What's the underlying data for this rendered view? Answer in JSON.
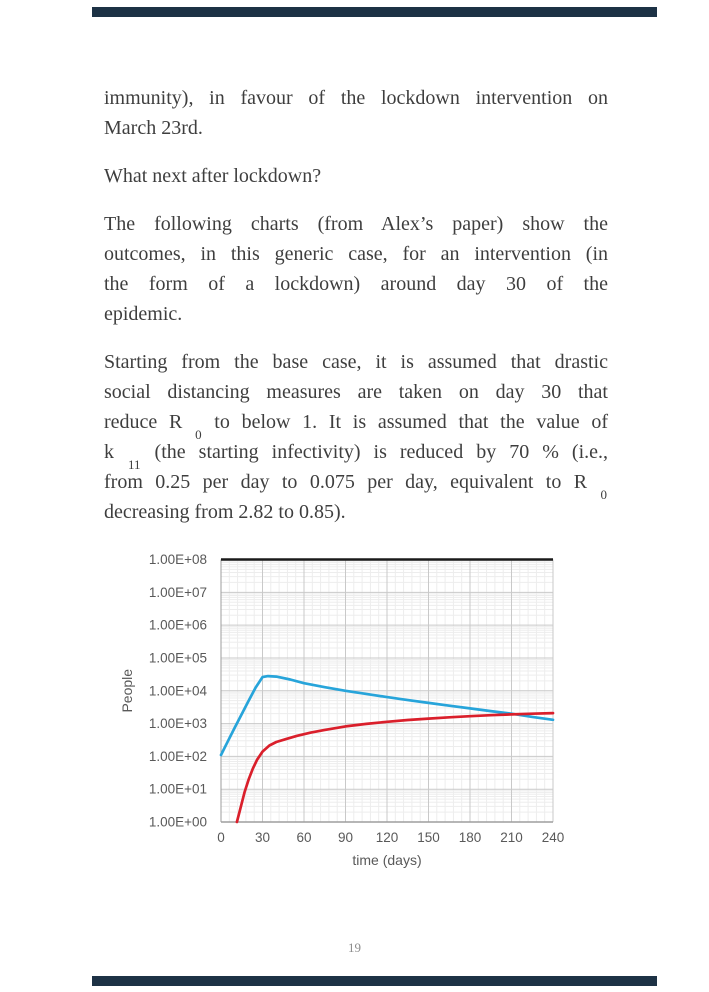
{
  "page": {
    "number": "19",
    "background": "#FFFFFF",
    "accent_bar_color": "#1D3245"
  },
  "content": {
    "paragraphs": [
      {
        "name": "para-immunity",
        "lines": [
          [
            {
              "t": "immunity), in favour of the lockdown intervention on"
            }
          ],
          [
            {
              "t": "March 23rd."
            }
          ]
        ]
      },
      {
        "name": "para-what-next",
        "lines": [
          [
            {
              "t": "What next after lockdown?"
            }
          ]
        ]
      },
      {
        "name": "para-following-charts",
        "lines": [
          [
            {
              "t": "The following charts (from Alex’s paper) show the"
            }
          ],
          [
            {
              "t": "outcomes, in this generic case, for an intervention (in"
            }
          ],
          [
            {
              "t": "the form of a lockdown) around day 30 of the"
            }
          ],
          [
            {
              "t": "epidemic."
            }
          ]
        ]
      },
      {
        "name": "para-starting-base-case",
        "lines": [
          [
            {
              "t": "Starting from the base case, it is assumed that drastic"
            }
          ],
          [
            {
              "t": "social distancing measures are taken on day 30 that"
            }
          ],
          [
            {
              "t": "reduce R "
            },
            {
              "t": "0",
              "sub": true
            },
            {
              "t": " to below 1. It is assumed that the value of"
            }
          ],
          [
            {
              "t": "k "
            },
            {
              "t": "11",
              "sub": true
            },
            {
              "t": " (the starting infectivity) is reduced by 70 % (i.e.,"
            }
          ],
          [
            {
              "t": "from 0.25 per day to 0.075 per day, equivalent to R "
            },
            {
              "t": "0",
              "sub": true
            }
          ],
          [
            {
              "t": "decreasing from 2.82 to 0.85)."
            }
          ]
        ]
      }
    ]
  },
  "chart_data": {
    "type": "line",
    "title": "",
    "xlabel": "time (days)",
    "ylabel": "People",
    "xlim": [
      0,
      240
    ],
    "ylim": [
      1,
      100000000
    ],
    "y_scale": "log",
    "x_ticks": [
      0,
      30,
      60,
      90,
      120,
      150,
      180,
      210,
      240
    ],
    "y_tick_labels": [
      "1.00E+08",
      "1.00E+07",
      "1.00E+06",
      "1.00E+05",
      "1.00E+04",
      "1.00E+03",
      "1.00E+02",
      "1.00E+01",
      "1.00E+00"
    ],
    "grid": "major+minor",
    "legend": "none",
    "colors": {
      "minor_grid": "#EDEDED",
      "major_grid": "#C9C9C9",
      "axis_line": "#9E9E9E",
      "top_border": "#1A1A1A",
      "tick_label": "#595959"
    },
    "series": [
      {
        "name": "blue",
        "color": "#27A4DA",
        "points": [
          [
            0,
            110
          ],
          [
            5,
            290
          ],
          [
            10,
            760
          ],
          [
            15,
            1950
          ],
          [
            20,
            5000
          ],
          [
            25,
            12500
          ],
          [
            30,
            26000
          ],
          [
            34,
            28000
          ],
          [
            40,
            27000
          ],
          [
            50,
            22000
          ],
          [
            60,
            17000
          ],
          [
            75,
            12800
          ],
          [
            90,
            10000
          ],
          [
            105,
            8000
          ],
          [
            120,
            6400
          ],
          [
            135,
            5200
          ],
          [
            150,
            4250
          ],
          [
            165,
            3500
          ],
          [
            180,
            2900
          ],
          [
            195,
            2400
          ],
          [
            210,
            2000
          ],
          [
            225,
            1600
          ],
          [
            240,
            1300
          ]
        ]
      },
      {
        "name": "red",
        "color": "#DA1F2B",
        "points": [
          [
            11.5,
            1
          ],
          [
            14,
            2.6
          ],
          [
            17,
            8
          ],
          [
            20,
            20
          ],
          [
            23,
            42
          ],
          [
            26,
            78
          ],
          [
            30,
            140
          ],
          [
            35,
            215
          ],
          [
            40,
            275
          ],
          [
            47,
            335
          ],
          [
            55,
            425
          ],
          [
            65,
            530
          ],
          [
            75,
            640
          ],
          [
            90,
            820
          ],
          [
            105,
            980
          ],
          [
            120,
            1130
          ],
          [
            135,
            1280
          ],
          [
            150,
            1420
          ],
          [
            165,
            1550
          ],
          [
            180,
            1680
          ],
          [
            195,
            1800
          ],
          [
            210,
            1900
          ],
          [
            225,
            2000
          ],
          [
            240,
            2080
          ]
        ]
      }
    ]
  }
}
